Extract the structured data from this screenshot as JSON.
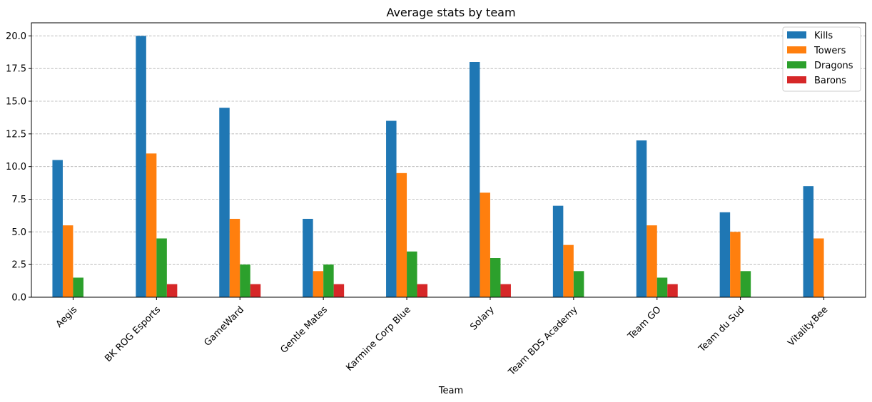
{
  "chart_data": {
    "type": "bar",
    "title": "Average stats by team",
    "xlabel": "Team",
    "ylabel": "",
    "ylim": [
      0,
      21
    ],
    "yticks": [
      "0.0",
      "2.5",
      "5.0",
      "7.5",
      "10.0",
      "12.5",
      "15.0",
      "17.5",
      "20.0"
    ],
    "grid": "y-dashed",
    "legend_position": "top-right",
    "categories": [
      "Aegis",
      "BK ROG Esports",
      "GameWard",
      "Gentle Mates",
      "Karmine Corp Blue",
      "Solary",
      "Team BDS Academy",
      "Team GO",
      "Team du Sud",
      "Vitality.Bee"
    ],
    "series": [
      {
        "name": "Kills",
        "color": "#1f77b4",
        "values": [
          10.5,
          20.0,
          14.5,
          6.0,
          13.5,
          18.0,
          7.0,
          12.0,
          6.5,
          8.5
        ]
      },
      {
        "name": "Towers",
        "color": "#ff7f0e",
        "values": [
          5.5,
          11.0,
          6.0,
          2.0,
          9.5,
          8.0,
          4.0,
          5.5,
          5.0,
          4.5
        ]
      },
      {
        "name": "Dragons",
        "color": "#2ca02c",
        "values": [
          1.5,
          4.5,
          2.5,
          2.5,
          3.5,
          3.0,
          2.0,
          1.5,
          2.0,
          0
        ]
      },
      {
        "name": "Barons",
        "color": "#d62728",
        "values": [
          0,
          1.0,
          1.0,
          1.0,
          1.0,
          1.0,
          0,
          1.0,
          0,
          0
        ]
      }
    ]
  }
}
